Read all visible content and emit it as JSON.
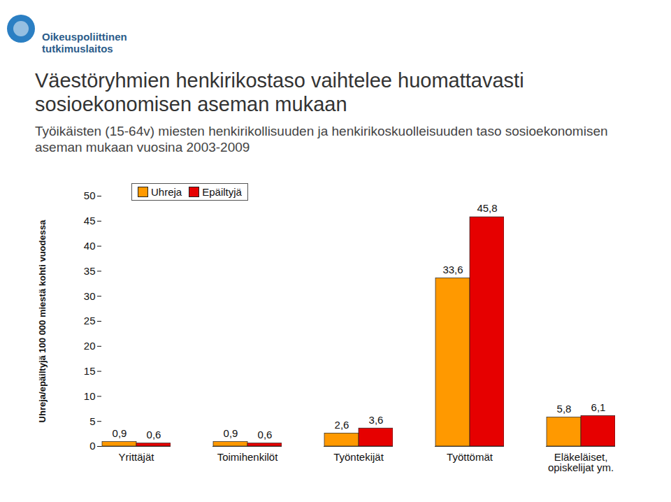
{
  "chart_data": {
    "type": "bar",
    "logo_text": [
      "Oikeuspoliittinen",
      "tutkimuslaitos"
    ],
    "title": "Väestöryhmien henkirikostaso vaihtelee huomattavasti sosioekonomisen aseman mukaan",
    "subtitle": "Työikäisten (15-64v) miesten henkirikollisuuden ja henkirikoskuolleisuuden taso sosioekonomisen aseman mukaan vuosina 2003-2009",
    "y_label": "Uhreja/epäiltyjä 100 000 miestä kohti vuodessa",
    "categories": [
      "Yrittäjät",
      "Toimihenkilöt",
      "Työntekijät",
      "Työttömät",
      "Eläkeläiset, opiskelijat ym."
    ],
    "series": [
      {
        "name": "Uhreja",
        "color": "#ff9900",
        "values": [
          0.9,
          0.9,
          2.6,
          33.6,
          5.8
        ],
        "value_labels": [
          "0,9",
          "0,9",
          "2,6",
          "33,6",
          "5,8"
        ]
      },
      {
        "name": "Epäiltyjä",
        "color": "#e60000",
        "values": [
          0.6,
          0.6,
          3.6,
          45.8,
          6.1
        ],
        "value_labels": [
          "0,6",
          "0,6",
          "3,6",
          "45,8",
          "6,1"
        ]
      }
    ],
    "ylim": [
      0,
      50
    ],
    "yticks": [
      0,
      5,
      10,
      15,
      20,
      25,
      30,
      35,
      40,
      45,
      50
    ],
    "grid": false,
    "legend": "top-left",
    "data_labels": true
  }
}
